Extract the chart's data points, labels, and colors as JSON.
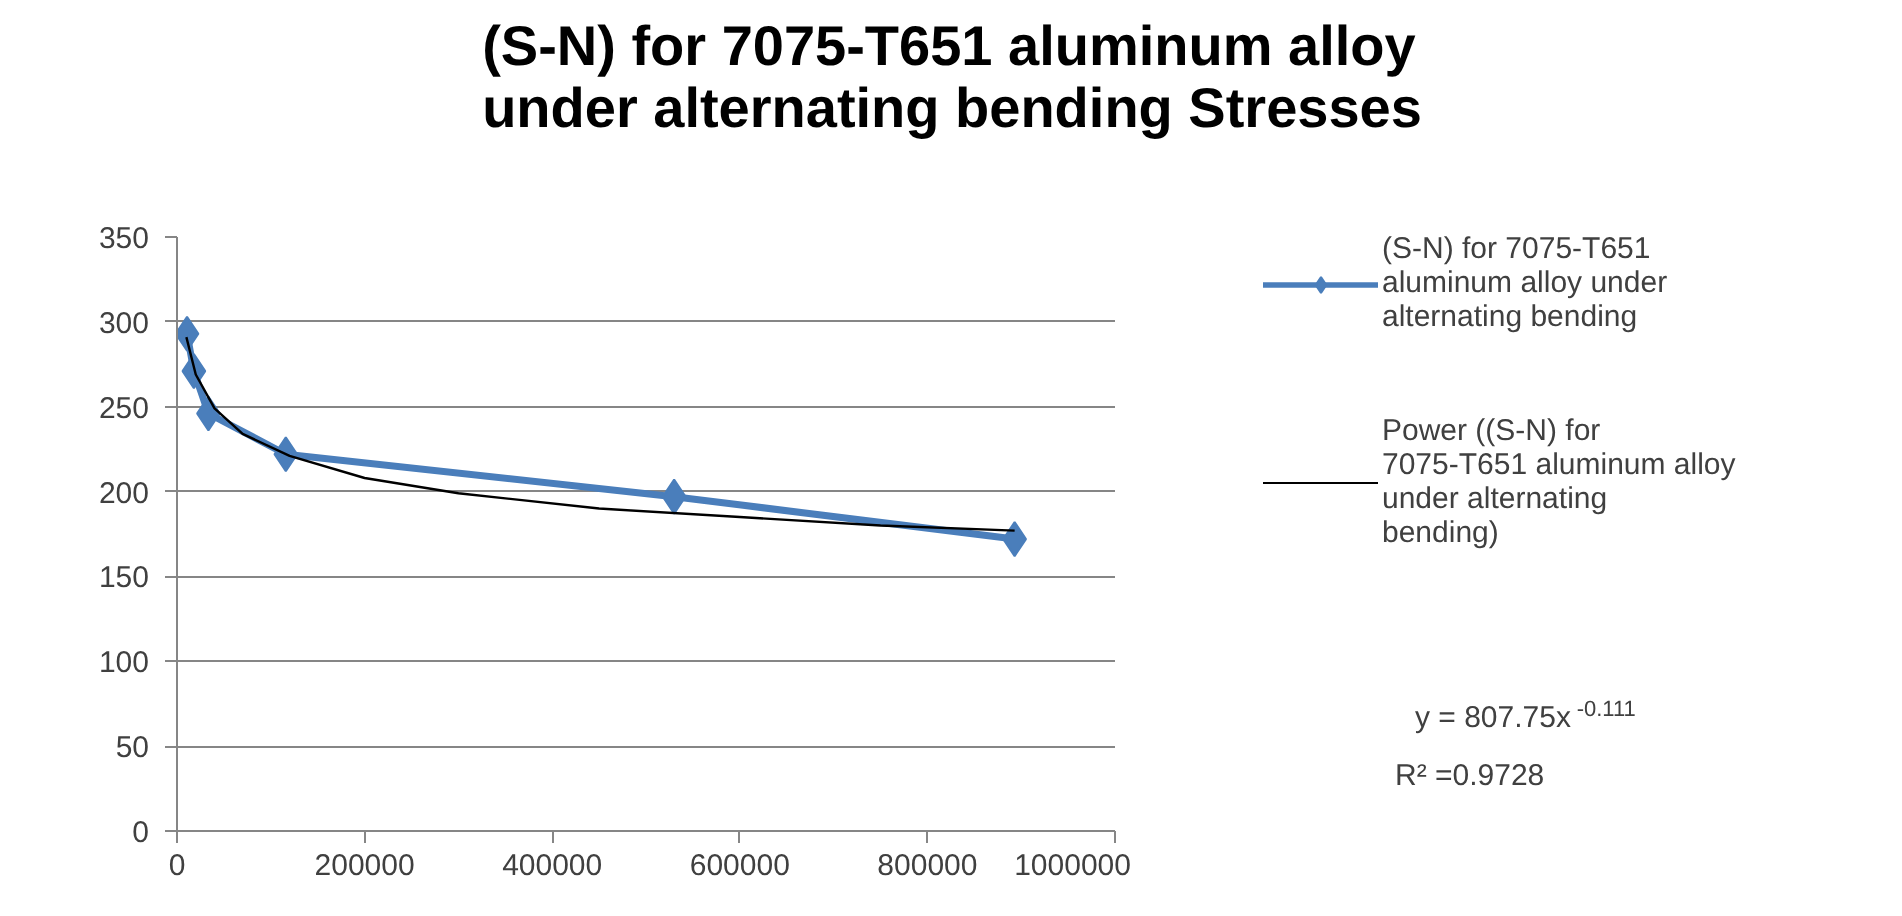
{
  "chart_data": {
    "type": "line",
    "title": "(S-N) for 7075-T651 aluminum alloy under alternating bending Stresses",
    "series": [
      {
        "name": "(S-N) for 7075-T651 aluminum alloy under alternating bending",
        "color": "#4a7ebb",
        "marker": "diamond",
        "x": [
          10700,
          18000,
          33500,
          116000,
          530000,
          893000
        ],
        "values": [
          293,
          271,
          246,
          222,
          197,
          172
        ]
      },
      {
        "name": "Power ((S-N) for 7075-T651 aluminum alloy under alternating bending)",
        "color": "#000000",
        "marker": "none",
        "x": [
          10000,
          20000,
          40000,
          70000,
          120000,
          200000,
          300000,
          450000,
          600000,
          750000,
          893000
        ],
        "values": [
          291,
          269,
          249,
          234,
          221,
          208,
          199,
          190,
          185,
          180,
          177
        ]
      }
    ],
    "xlim": [
      0,
      1000000
    ],
    "xticks": [
      0,
      200000,
      400000,
      600000,
      800000,
      1000000
    ],
    "ylim": [
      0,
      350
    ],
    "yticks": [
      0,
      50,
      100,
      150,
      200,
      250,
      300,
      350
    ],
    "grid": "y",
    "legend": "right",
    "annotations": [
      "y = 807.75x$^{-0.111}$",
      "R² =0.9728"
    ]
  }
}
